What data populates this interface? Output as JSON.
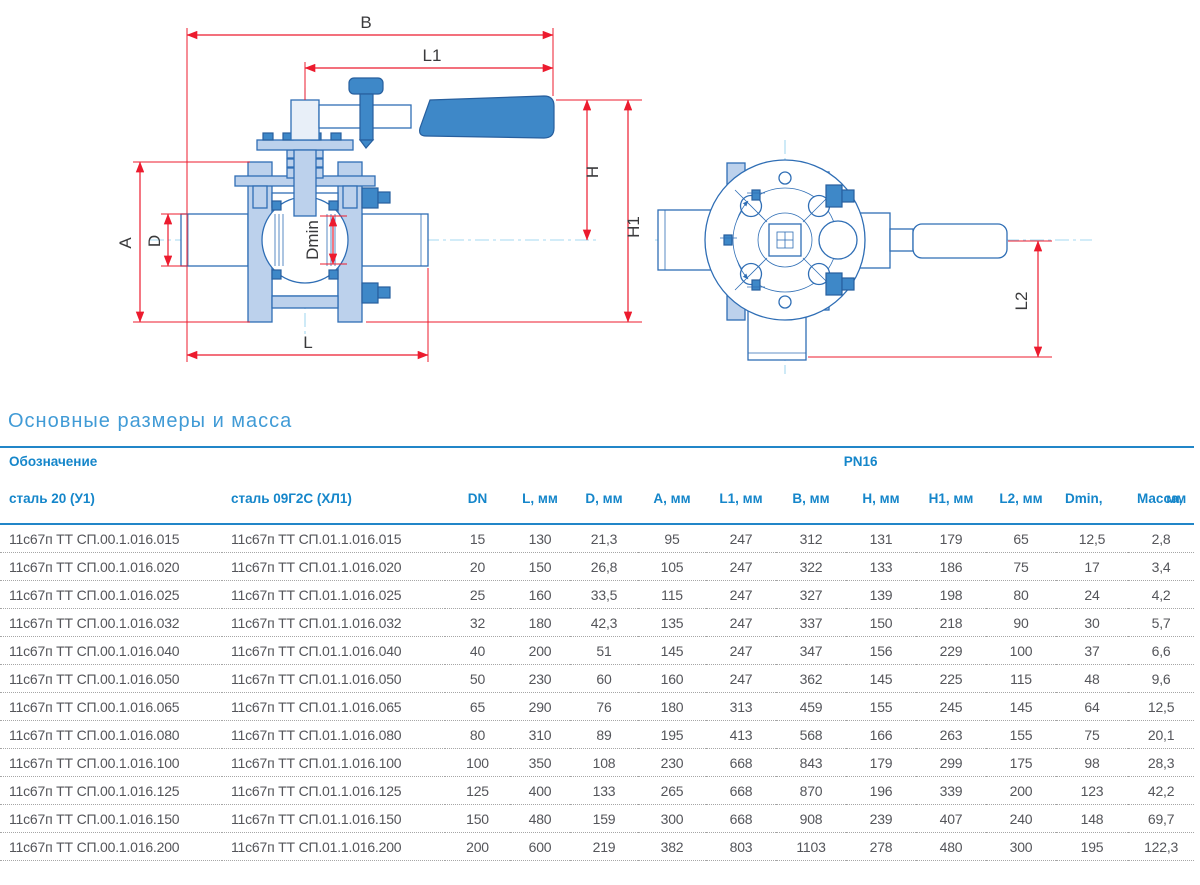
{
  "drawing": {
    "dim_labels": {
      "B": "B",
      "L1": "L1",
      "H": "H",
      "H1": "H1",
      "A": "A",
      "D": "D",
      "Dmin": "Dmin",
      "L": "L",
      "L2": "L2"
    }
  },
  "section": {
    "title": "Основные размеры и масса"
  },
  "table": {
    "group_header": {
      "designation": "Обозначение",
      "pressure": "PN16"
    },
    "columns": [
      "сталь 20 (У1)",
      "сталь 09Г2С (ХЛ1)",
      "DN",
      "L, мм",
      "D, мм",
      "A, мм",
      "L1, мм",
      "B, мм",
      "H, мм",
      "H1, мм",
      "L2, мм",
      "Dmin, мм",
      "Масса, кг"
    ],
    "rows": [
      [
        "11с67п ТТ СП.00.1.016.015",
        "11с67п ТТ СП.01.1.016.015",
        "15",
        "130",
        "21,3",
        "95",
        "247",
        "312",
        "131",
        "179",
        "65",
        "12,5",
        "2,8"
      ],
      [
        "11с67п ТТ СП.00.1.016.020",
        "11с67п ТТ СП.01.1.016.020",
        "20",
        "150",
        "26,8",
        "105",
        "247",
        "322",
        "133",
        "186",
        "75",
        "17",
        "3,4"
      ],
      [
        "11с67п ТТ СП.00.1.016.025",
        "11с67п ТТ СП.01.1.016.025",
        "25",
        "160",
        "33,5",
        "115",
        "247",
        "327",
        "139",
        "198",
        "80",
        "24",
        "4,2"
      ],
      [
        "11с67п ТТ СП.00.1.016.032",
        "11с67п ТТ СП.01.1.016.032",
        "32",
        "180",
        "42,3",
        "135",
        "247",
        "337",
        "150",
        "218",
        "90",
        "30",
        "5,7"
      ],
      [
        "11с67п ТТ СП.00.1.016.040",
        "11с67п ТТ СП.01.1.016.040",
        "40",
        "200",
        "51",
        "145",
        "247",
        "347",
        "156",
        "229",
        "100",
        "37",
        "6,6"
      ],
      [
        "11с67п ТТ СП.00.1.016.050",
        "11с67п ТТ СП.01.1.016.050",
        "50",
        "230",
        "60",
        "160",
        "247",
        "362",
        "145",
        "225",
        "115",
        "48",
        "9,6"
      ],
      [
        "11с67п ТТ СП.00.1.016.065",
        "11с67п ТТ СП.01.1.016.065",
        "65",
        "290",
        "76",
        "180",
        "313",
        "459",
        "155",
        "245",
        "145",
        "64",
        "12,5"
      ],
      [
        "11с67п ТТ СП.00.1.016.080",
        "11с67п ТТ СП.01.1.016.080",
        "80",
        "310",
        "89",
        "195",
        "413",
        "568",
        "166",
        "263",
        "155",
        "75",
        "20,1"
      ],
      [
        "11с67п ТТ СП.00.1.016.100",
        "11с67п ТТ СП.01.1.016.100",
        "100",
        "350",
        "108",
        "230",
        "668",
        "843",
        "179",
        "299",
        "175",
        "98",
        "28,3"
      ],
      [
        "11с67п ТТ СП.00.1.016.125",
        "11с67п ТТ СП.01.1.016.125",
        "125",
        "400",
        "133",
        "265",
        "668",
        "870",
        "196",
        "339",
        "200",
        "123",
        "42,2"
      ],
      [
        "11с67п ТТ СП.00.1.016.150",
        "11с67п ТТ СП.01.1.016.150",
        "150",
        "480",
        "159",
        "300",
        "668",
        "908",
        "239",
        "407",
        "240",
        "148",
        "69,7"
      ],
      [
        "11с67п ТТ СП.00.1.016.200",
        "11с67п ТТ СП.01.1.016.200",
        "200",
        "600",
        "219",
        "382",
        "803",
        "1103",
        "278",
        "480",
        "300",
        "195",
        "122,3"
      ]
    ]
  },
  "colors": {
    "header_blue": "#1586ca",
    "rule_blue": "#2186c8",
    "title_blue": "#419bd6",
    "dimension_red": "#ec1b2e",
    "outline_blue": "#2f6eb5",
    "fill_light_blue": "#bcd1ec",
    "fill_mid_blue": "#3e88c8",
    "centerline_cyan": "#a5d9f0",
    "cell_gray": "#54555a"
  }
}
